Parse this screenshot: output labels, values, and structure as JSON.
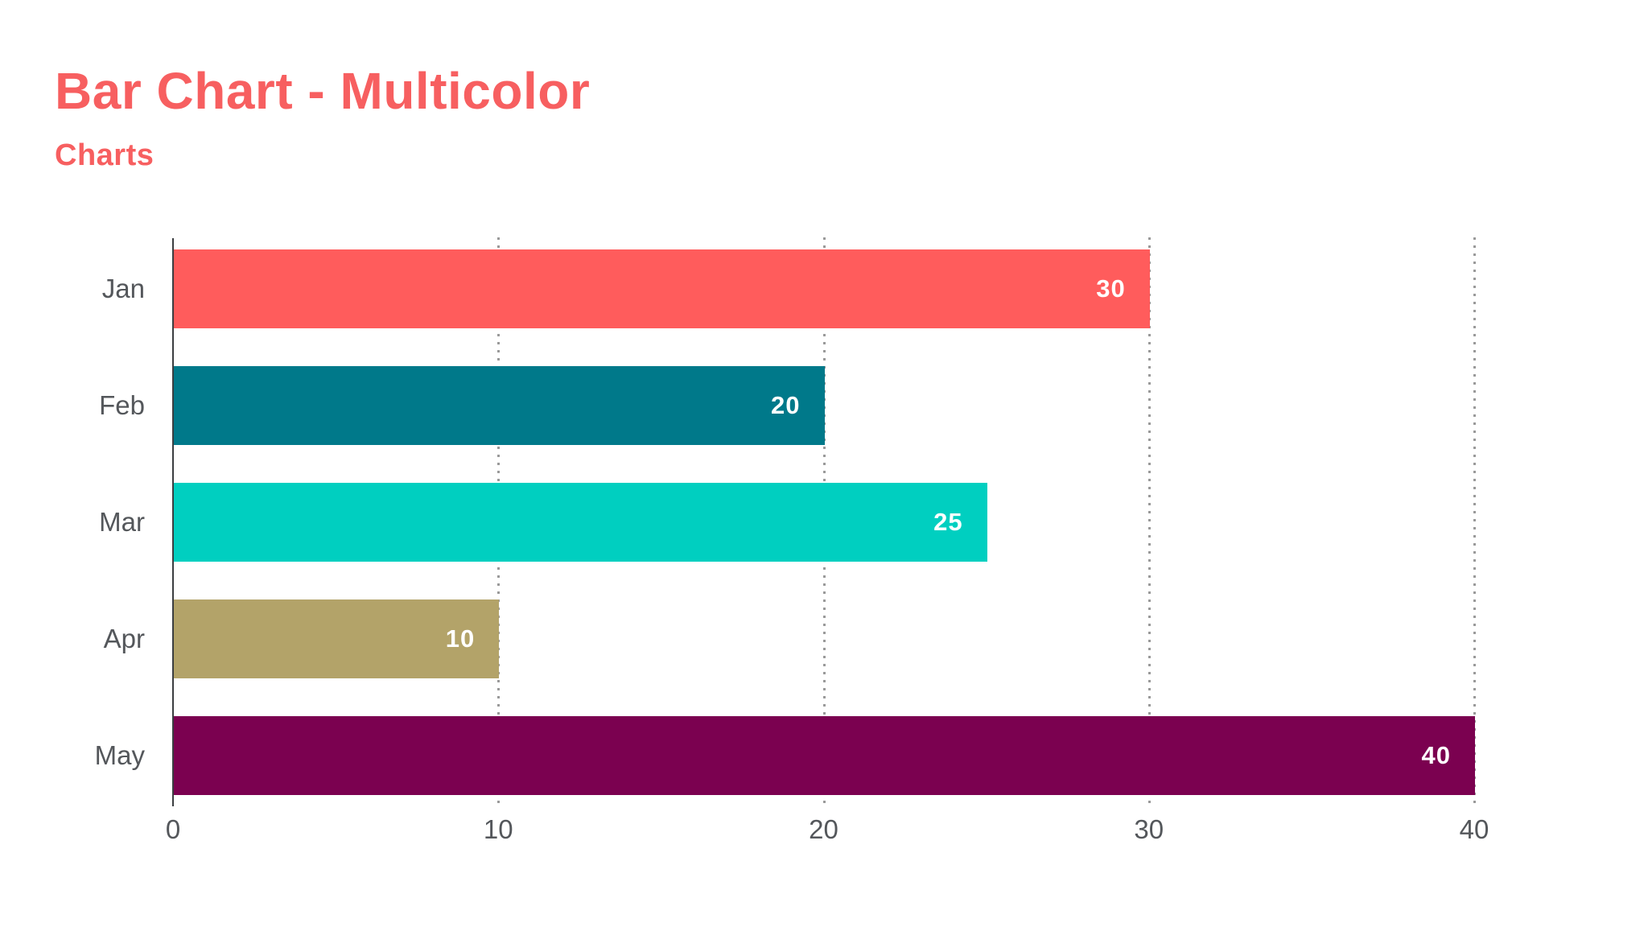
{
  "header": {
    "title": "Bar Chart - Multicolor",
    "subtitle": "Charts"
  },
  "chart_data": {
    "type": "bar",
    "orientation": "horizontal",
    "title": "Bar Chart - Multicolor",
    "subtitle": "Charts",
    "categories": [
      "Jan",
      "Feb",
      "Mar",
      "Apr",
      "May"
    ],
    "values": [
      30,
      20,
      25,
      10,
      40
    ],
    "bar_colors": [
      "#ff5c5c",
      "#00798a",
      "#00cfc0",
      "#b3a369",
      "#7b0150"
    ],
    "value_labels": [
      "30",
      "20",
      "25",
      "10",
      "40"
    ],
    "value_label_position": "inside-end",
    "value_label_color": "#ffffff",
    "xlabel": "",
    "ylabel": "",
    "xlim": [
      0,
      40
    ],
    "x_ticks": [
      0,
      10,
      20,
      30,
      40
    ],
    "grid": "dotted-vertical-gridlines",
    "legend": "none"
  },
  "colors": {
    "background": "#ffffff",
    "title": "#f75f60",
    "subtitle": "#f75f60",
    "axis_line": "#3b3e41",
    "category_label": "#54575b",
    "tick_label": "#54575b",
    "gridline": "#9a9a9a"
  }
}
